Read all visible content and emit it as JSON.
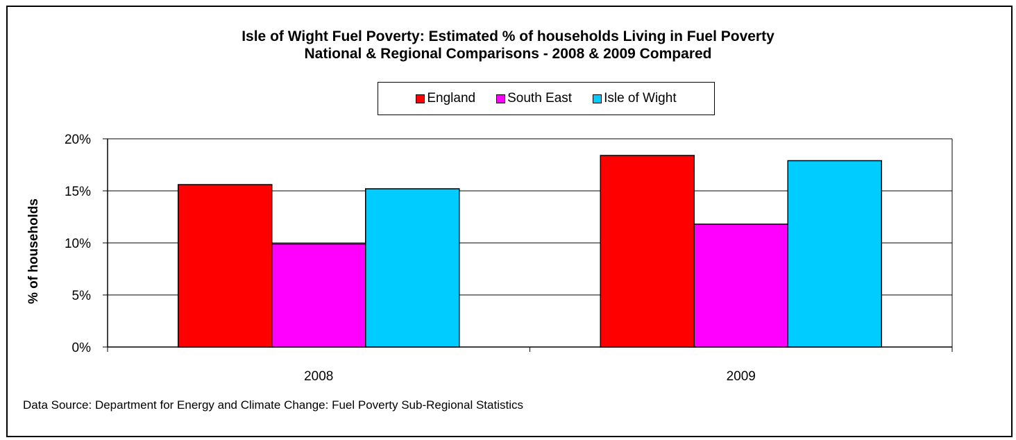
{
  "chart_data": {
    "type": "bar",
    "title_line1": "Isle of Wight Fuel Poverty: Estimated % of households Living in Fuel Poverty",
    "title_line2": "National & Regional Comparisons - 2008 & 2009 Compared",
    "ylabel": "% of households",
    "xlabel": "",
    "categories": [
      "2008",
      "2009"
    ],
    "series": [
      {
        "name": "England",
        "color": "#ff0000",
        "values": [
          15.6,
          18.4
        ]
      },
      {
        "name": "South East",
        "color": "#ff00ff",
        "values": [
          9.9,
          11.8
        ]
      },
      {
        "name": "Isle of Wight",
        "color": "#00ccff",
        "values": [
          15.2,
          17.9
        ]
      }
    ],
    "ylim": [
      0,
      20
    ],
    "yticks": [
      0,
      5,
      10,
      15,
      20
    ],
    "ytick_labels": [
      "0%",
      "5%",
      "10%",
      "15%",
      "20%"
    ],
    "grid": true,
    "legend_position": "top-center",
    "source": "Data Source: Department for Energy and Climate Change: Fuel Poverty Sub-Regional Statistics"
  }
}
